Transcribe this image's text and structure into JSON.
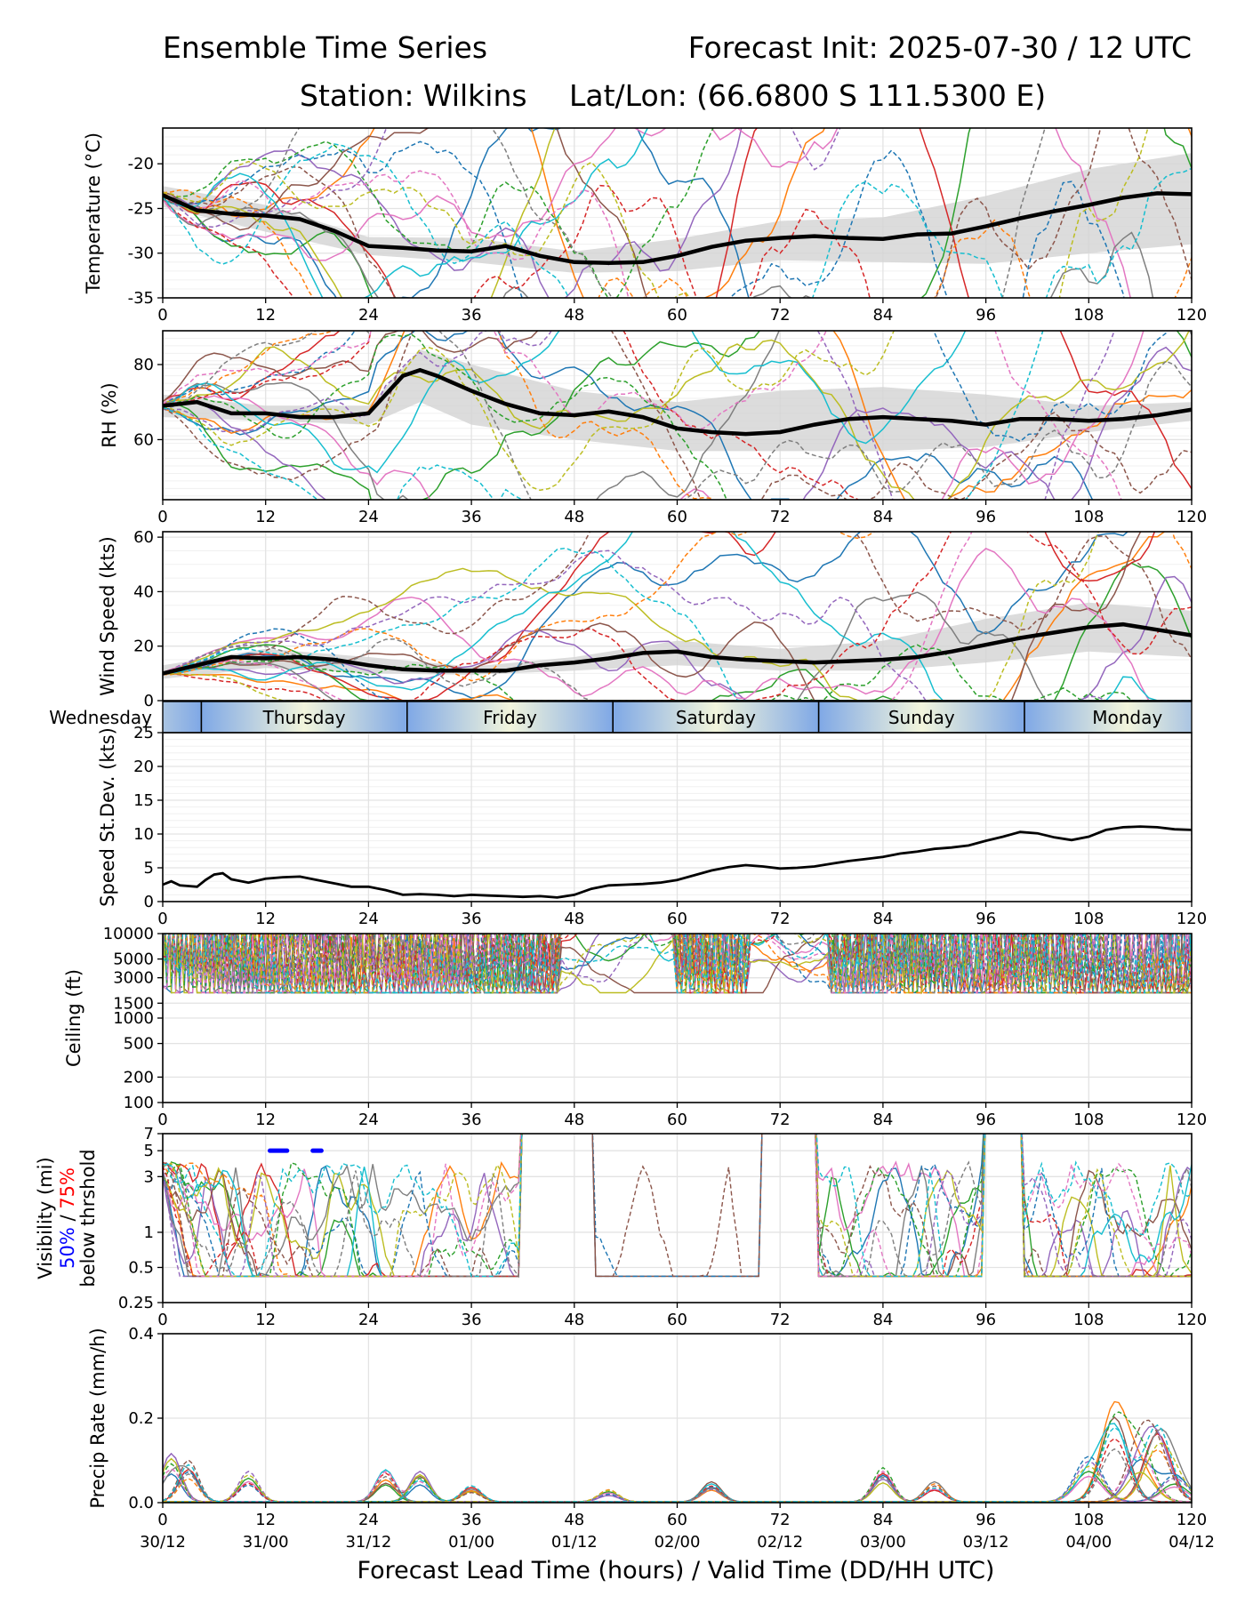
{
  "header": {
    "title_left": "Ensemble Time Series",
    "title_right": "Forecast Init: 2025-07-30 / 12 UTC",
    "station": "Station: Wilkins",
    "latlon": "Lat/Lon: (66.6800 S 111.5300 E)"
  },
  "colors": {
    "mean": "#000000",
    "band": "#d3d3d3",
    "members": [
      "#1f77b4",
      "#ff7f0e",
      "#2ca02c",
      "#d62728",
      "#9467bd",
      "#8c564b",
      "#e377c2",
      "#7f7f7f",
      "#bcbd22",
      "#17becf"
    ],
    "vis_50": "#0000ff",
    "vis_75": "#ff0000",
    "day_band_edge": "#7fa8e6",
    "day_band_mid": "#f2f5dc"
  },
  "x_axis": {
    "ticks": [
      0,
      12,
      24,
      36,
      48,
      60,
      72,
      84,
      96,
      108,
      120
    ],
    "valid_time_labels": [
      "30/12",
      "31/00",
      "31/12",
      "01/00",
      "01/12",
      "02/00",
      "02/12",
      "03/00",
      "03/12",
      "04/00",
      "04/12"
    ],
    "label": "Forecast Lead Time (hours) / Valid Time (DD/HH UTC)"
  },
  "day_band": {
    "days": [
      "Wednesday",
      "Thursday",
      "Friday",
      "Saturday",
      "Sunday",
      "Monday"
    ],
    "boundaries_hours": [
      4.5,
      28.5,
      52.5,
      76.5,
      100.5
    ]
  },
  "chart_data": [
    {
      "type": "line",
      "panel": "temperature",
      "ylabel": "Temperature (°C)",
      "ylim": [
        -35,
        -16
      ],
      "yticks": [
        -35,
        -30,
        -25,
        -20
      ],
      "grid": true,
      "members": 20,
      "mean": {
        "x": [
          0,
          4,
          8,
          12,
          16,
          20,
          24,
          28,
          32,
          36,
          40,
          44,
          48,
          52,
          56,
          60,
          64,
          68,
          72,
          76,
          80,
          84,
          88,
          92,
          96,
          100,
          104,
          108,
          112,
          116,
          120
        ],
        "y": [
          -23.5,
          -25.2,
          -25.6,
          -25.8,
          -26.2,
          -27.5,
          -29.2,
          -29.4,
          -29.7,
          -29.8,
          -29.2,
          -30.3,
          -31,
          -31.1,
          -31,
          -30.3,
          -29.3,
          -28.6,
          -28.3,
          -28.1,
          -28.3,
          -28.4,
          -27.9,
          -27.8,
          -27,
          -26.1,
          -25.3,
          -24.6,
          -23.8,
          -23.3,
          -23.4
        ]
      },
      "band": {
        "x": [
          0,
          12,
          24,
          36,
          48,
          60,
          72,
          84,
          96,
          108,
          120
        ],
        "low": [
          -24.8,
          -27.6,
          -30.2,
          -31,
          -32.2,
          -32,
          -30.8,
          -31,
          -31.2,
          -30,
          -29
        ],
        "high": [
          -22.5,
          -24.6,
          -28.2,
          -28.3,
          -29.8,
          -28.4,
          -26.4,
          -26,
          -23.6,
          -20.6,
          -18.8
        ]
      }
    },
    {
      "type": "line",
      "panel": "rh",
      "ylabel": "RH (%)",
      "ylim": [
        44,
        89
      ],
      "yticks": [
        60,
        80
      ],
      "grid": true,
      "members": 20,
      "mean": {
        "x": [
          0,
          4,
          8,
          12,
          16,
          20,
          24,
          26,
          28,
          30,
          32,
          36,
          40,
          44,
          48,
          52,
          56,
          60,
          64,
          68,
          72,
          76,
          80,
          84,
          88,
          92,
          96,
          100,
          104,
          108,
          112,
          116,
          120
        ],
        "y": [
          69,
          70,
          67,
          67,
          66,
          66,
          67,
          72,
          77,
          78.5,
          77,
          73,
          69.5,
          67,
          66.5,
          67.5,
          66,
          63,
          62,
          61.5,
          62,
          64,
          65.5,
          66,
          65.5,
          65,
          64,
          65.5,
          65.5,
          65,
          65.5,
          66.5,
          68
        ]
      },
      "band": {
        "x": [
          0,
          12,
          24,
          30,
          36,
          48,
          60,
          72,
          84,
          96,
          108,
          120
        ],
        "low": [
          66,
          65,
          64,
          70,
          64,
          60,
          57,
          57,
          57,
          58,
          62,
          65
        ],
        "high": [
          72,
          69,
          69,
          84,
          80,
          73,
          70,
          73,
          74,
          72,
          69,
          70
        ]
      }
    },
    {
      "type": "line",
      "panel": "wind_speed",
      "ylabel": "Wind Speed (kts)",
      "ylim": [
        0,
        62
      ],
      "yticks": [
        0,
        20,
        40,
        60
      ],
      "grid": true,
      "members": 20,
      "mean": {
        "x": [
          0,
          4,
          8,
          12,
          16,
          20,
          24,
          28,
          32,
          36,
          40,
          44,
          48,
          52,
          56,
          60,
          64,
          68,
          72,
          76,
          80,
          84,
          88,
          92,
          96,
          100,
          104,
          108,
          112,
          116,
          120
        ],
        "y": [
          10,
          13,
          16,
          15.5,
          16,
          15,
          13,
          11.5,
          11,
          11,
          11,
          13,
          14,
          15.5,
          17.5,
          18,
          16,
          15,
          14.5,
          14,
          14.5,
          15,
          16,
          18,
          20.5,
          23,
          25,
          27,
          28,
          26,
          24
        ]
      },
      "band": {
        "x": [
          0,
          12,
          24,
          36,
          48,
          60,
          72,
          84,
          96,
          108,
          120
        ],
        "low": [
          8,
          12,
          10,
          9.5,
          11,
          13,
          11,
          11,
          14,
          18,
          16
        ],
        "high": [
          13,
          19,
          16,
          12.5,
          16,
          22,
          19,
          22,
          30,
          36,
          33
        ]
      }
    },
    {
      "type": "line",
      "panel": "speed_stdev",
      "ylabel": "Speed St.Dev. (kts)",
      "ylim": [
        0,
        25
      ],
      "yticks": [
        0,
        5,
        10,
        15,
        20,
        25
      ],
      "grid": true,
      "x": [
        0,
        1,
        2,
        3,
        4,
        5,
        6,
        7,
        8,
        10,
        12,
        14,
        16,
        18,
        20,
        22,
        24,
        26,
        28,
        30,
        32,
        34,
        36,
        38,
        40,
        42,
        44,
        46,
        48,
        50,
        52,
        54,
        56,
        58,
        60,
        62,
        64,
        66,
        68,
        70,
        72,
        74,
        76,
        78,
        80,
        82,
        84,
        86,
        88,
        90,
        92,
        94,
        96,
        98,
        100,
        102,
        104,
        106,
        108,
        110,
        112,
        114,
        116,
        118,
        120
      ],
      "y": [
        2.5,
        3,
        2.4,
        2.3,
        2.2,
        3.2,
        4,
        4.2,
        3.3,
        2.8,
        3.4,
        3.6,
        3.7,
        3.2,
        2.7,
        2.2,
        2.2,
        1.7,
        1.0,
        1.1,
        1.0,
        0.8,
        1.0,
        0.9,
        0.8,
        0.7,
        0.8,
        0.6,
        1.0,
        1.9,
        2.4,
        2.5,
        2.6,
        2.8,
        3.2,
        3.9,
        4.6,
        5.1,
        5.4,
        5.2,
        4.9,
        5.0,
        5.2,
        5.6,
        6.0,
        6.3,
        6.6,
        7.1,
        7.4,
        7.8,
        8.0,
        8.3,
        9.0,
        9.6,
        10.3,
        10.1,
        9.5,
        9.1,
        9.6,
        10.6,
        11.0,
        11.1,
        11.0,
        10.7,
        10.6
      ]
    },
    {
      "type": "line",
      "panel": "ceiling",
      "ylabel": "Ceiling (ft)",
      "yscale": "log",
      "ylim": [
        100,
        10000
      ],
      "yticks": [
        100,
        200,
        500,
        1000,
        1500,
        3000,
        5000,
        10000
      ],
      "grid": true,
      "members": 20
    },
    {
      "type": "line",
      "panel": "visibility",
      "ylabel_lines": [
        "Visibility (mi)",
        "50%",
        " / ",
        "75%",
        "below thrshold"
      ],
      "yscale": "log",
      "ylim": [
        0.25,
        7
      ],
      "yticks": [
        0.25,
        0.5,
        1,
        3,
        5,
        7
      ],
      "grid": true,
      "members": 20,
      "threshold_50_segments": [
        [
          12.5,
          14.5
        ],
        [
          17.5,
          18.5
        ]
      ],
      "threshold_value": 5
    },
    {
      "type": "line",
      "panel": "precip_rate",
      "ylabel": "Precip Rate (mm/h)",
      "ylim": [
        0,
        0.4
      ],
      "yticks": [
        0.0,
        0.2,
        0.4
      ],
      "grid": true,
      "members": 20
    }
  ],
  "tick_label_text": {
    "temp": [
      "-35",
      "-30",
      "-25",
      "-20"
    ],
    "rh": [
      "60",
      "80"
    ],
    "wind": [
      "0",
      "20",
      "40",
      "60"
    ],
    "sd": [
      "0",
      "5",
      "10",
      "15",
      "20",
      "25"
    ],
    "ceil": [
      "100",
      "200",
      "500",
      "1000",
      "1500",
      "3000",
      "5000",
      "10000"
    ],
    "vis": [
      "0.25",
      "0.5",
      "1",
      "3",
      "5",
      "7"
    ],
    "precip": [
      "0.0",
      "0.2",
      "0.4"
    ]
  }
}
